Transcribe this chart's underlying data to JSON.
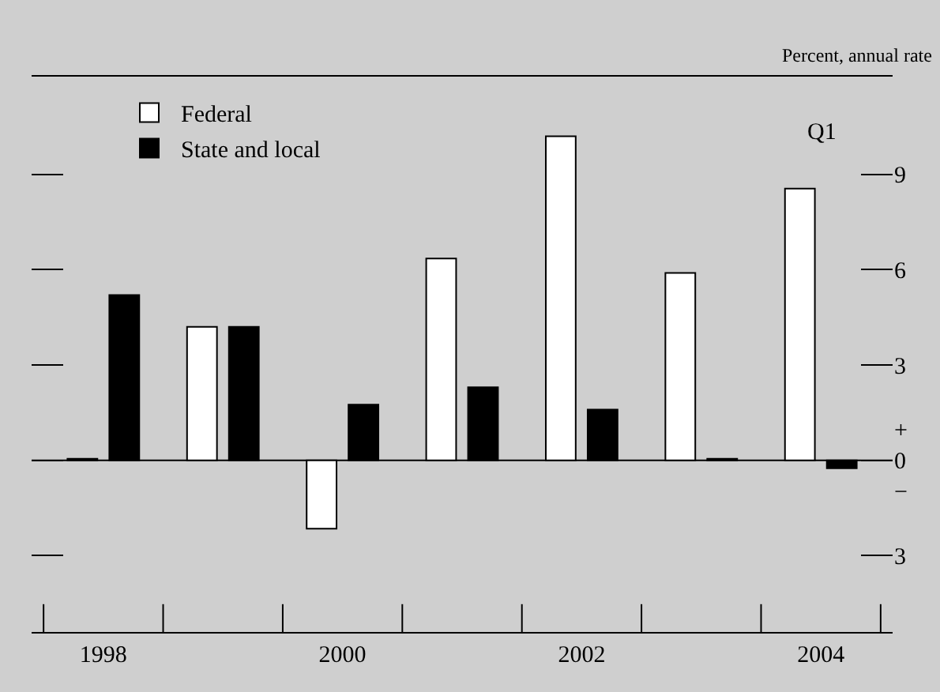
{
  "chart_data": {
    "type": "bar",
    "ylabel": "Percent, annual rate",
    "categories": [
      "1998",
      null,
      "2000",
      null,
      "2002",
      null,
      "2004"
    ],
    "series": [
      {
        "name": "Federal",
        "color": "#ffffff",
        "values": [
          0.05,
          4.2,
          -2.15,
          6.35,
          10.2,
          5.9,
          8.55
        ]
      },
      {
        "name": "State and local",
        "color": "#000000",
        "values": [
          5.2,
          4.2,
          1.75,
          2.3,
          1.6,
          0.05,
          -0.25
        ]
      }
    ],
    "ylim": [
      -5.4,
      12.1
    ],
    "yticks": [
      {
        "value": 9,
        "label": "9"
      },
      {
        "value": 6,
        "label": "6"
      },
      {
        "value": 3,
        "label": "3"
      },
      {
        "value": 0,
        "label": "+\n0\n−"
      },
      {
        "value": -3,
        "label": "3"
      }
    ],
    "annotations": [
      "Q1"
    ],
    "ref_lines": [
      {
        "axis": "y",
        "value": 0,
        "color": "#000000"
      }
    ],
    "legend": "top left",
    "grid": false
  }
}
